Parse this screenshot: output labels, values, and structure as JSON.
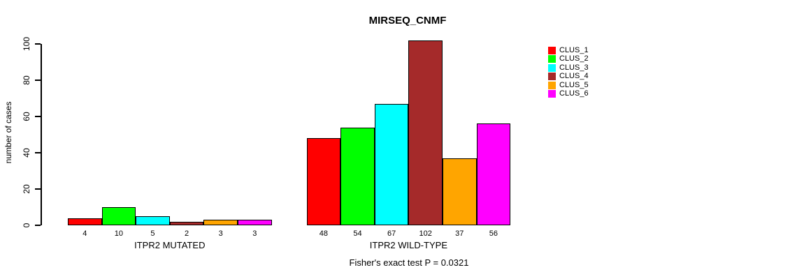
{
  "title": "MIRSEQ_CNMF",
  "y_axis": {
    "label": "number of cases",
    "ticks": [
      0,
      20,
      40,
      60,
      80,
      100
    ]
  },
  "legend": {
    "items": [
      {
        "label": "CLUS_1",
        "color": "#FF0000"
      },
      {
        "label": "CLUS_2",
        "color": "#00FF00"
      },
      {
        "label": "CLUS_3",
        "color": "#00FFFF"
      },
      {
        "label": "CLUS_4",
        "color": "#A52A2A"
      },
      {
        "label": "CLUS_5",
        "color": "#FFA500"
      },
      {
        "label": "CLUS_6",
        "color": "#FF00FF"
      }
    ]
  },
  "footnote": "Fisher's exact test P = 0.0321",
  "chart_data": {
    "type": "bar",
    "title": "MIRSEQ_CNMF",
    "ylabel": "number of cases",
    "ylim": [
      0,
      100
    ],
    "grid": false,
    "legend_position": "right",
    "series_labels": [
      "CLUS_1",
      "CLUS_2",
      "CLUS_3",
      "CLUS_4",
      "CLUS_5",
      "CLUS_6"
    ],
    "colors": [
      "#FF0000",
      "#00FF00",
      "#00FFFF",
      "#A52A2A",
      "#FFA500",
      "#FF00FF"
    ],
    "groups": [
      {
        "label": "ITPR2 MUTATED",
        "values": [
          4,
          10,
          5,
          2,
          3,
          3
        ]
      },
      {
        "label": "ITPR2 WILD-TYPE",
        "values": [
          48,
          54,
          67,
          102,
          37,
          56
        ]
      }
    ]
  }
}
